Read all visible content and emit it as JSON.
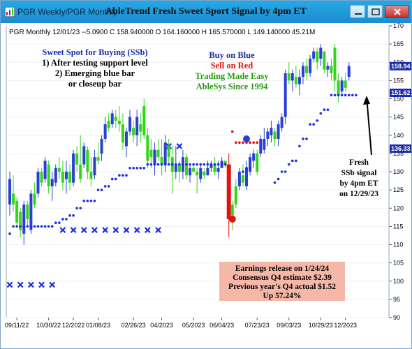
{
  "window": {
    "tab_title": "PGR  Weekly/PGR  Monthly",
    "title": "AbleTrend Fresh Sweet Sport Signal by 4pm ET",
    "buttons": [
      "minimize",
      "maximize",
      "close"
    ]
  },
  "header": {
    "ohlc": "PGR  Monthly 12/01/23 --5.0900  C 158.940000  O 164.160000  H 165.570000  L 149.140000  45.21M"
  },
  "annotations": {
    "sweet_spot": [
      "Sweet Spot for Buying (SSb)",
      "1) After testing support level",
      "2) Emerging blue bar",
      "or closeup bar"
    ],
    "center": [
      {
        "text": "Buy on Blue",
        "color": "#1a2da8"
      },
      {
        "text": "Sell on Red",
        "color": "#e51010"
      },
      {
        "text": "Trading Made Easy",
        "color": "#2a9a10"
      },
      {
        "text": "AbleSys Since 1994",
        "color": "#2a9a10"
      }
    ],
    "fresh": [
      "Fresh",
      "SSb signal",
      "by 4pm ET",
      "on 12/29/23"
    ],
    "earnings": [
      "Earnings release on 1/24/24",
      "Consensus Q4 estimate $2.39",
      "Previous year's Q4 actual $1.52",
      "Up 57.24%"
    ]
  },
  "price_badges": [
    {
      "label": "158.94",
      "value": 158.94,
      "color": "#1a2da8"
    },
    {
      "label": "151.62",
      "value": 151.62,
      "color": "#1a2da8"
    },
    {
      "label": "136.33",
      "value": 136.33,
      "color": "#1a2da8"
    }
  ],
  "colors": {
    "up": "#2b3fd6",
    "down": "#33d61a",
    "sell": "#e51010",
    "dot": "#1a2de0",
    "xmark": "#1a2de0",
    "earnings_bg": "#f5b7a8"
  },
  "chart_data": {
    "type": "candlestick",
    "ylim": [
      90,
      170
    ],
    "y_ticks": [
      90,
      95,
      100,
      105,
      110,
      115,
      120,
      125,
      130,
      135,
      140,
      145,
      150,
      155,
      160,
      165,
      170
    ],
    "x_ticks": [
      "09/11/22",
      "10/30/22",
      "12/2022",
      "01/08/23",
      "02/26/23",
      "04/2023",
      "05/2023",
      "06/04/23",
      "07/23/23",
      "09/03/23",
      "10/29/23",
      "12/2023"
    ],
    "x_tick_index": [
      2,
      11,
      18,
      25,
      35,
      43,
      52,
      60,
      70,
      79,
      88,
      95
    ],
    "bars": [
      [
        130,
        118,
        128,
        121,
        "up"
      ],
      [
        129,
        119,
        124,
        121,
        "down"
      ],
      [
        123,
        115,
        122,
        116,
        "down"
      ],
      [
        120,
        112,
        119,
        114,
        "down"
      ],
      [
        122,
        110,
        113,
        121,
        "up"
      ],
      [
        122,
        115,
        121,
        117,
        "down"
      ],
      [
        125,
        113,
        114,
        124,
        "up"
      ],
      [
        127,
        120,
        124,
        121,
        "down"
      ],
      [
        131,
        123,
        124,
        130,
        "up"
      ],
      [
        131,
        126,
        130,
        127,
        "down"
      ],
      [
        134,
        127,
        128,
        133,
        "up"
      ],
      [
        133,
        124,
        132,
        126,
        "down"
      ],
      [
        130,
        122,
        126,
        128,
        "up"
      ],
      [
        132,
        126,
        127,
        131,
        "up"
      ],
      [
        134,
        128,
        131,
        130,
        "down"
      ],
      [
        133,
        125,
        130,
        127,
        "down"
      ],
      [
        133,
        124,
        128,
        130,
        "up"
      ],
      [
        132,
        125,
        130,
        127,
        "down"
      ],
      [
        136,
        126,
        127,
        135,
        "up"
      ],
      [
        137,
        130,
        135,
        132,
        "down"
      ],
      [
        140,
        127,
        132,
        128,
        "down"
      ],
      [
        138,
        131,
        132,
        137,
        "up"
      ],
      [
        137,
        128,
        136,
        130,
        "down"
      ],
      [
        134,
        126,
        130,
        128,
        "down"
      ],
      [
        136,
        128,
        129,
        134,
        "up"
      ],
      [
        138,
        132,
        134,
        133,
        "down"
      ],
      [
        140,
        133,
        135,
        139,
        "up"
      ],
      [
        145,
        138,
        139,
        143,
        "up"
      ],
      [
        146,
        141,
        144,
        142,
        "down"
      ],
      [
        147,
        142,
        143,
        146,
        "up"
      ],
      [
        147,
        142,
        145,
        144,
        "down"
      ],
      [
        148,
        141,
        144,
        143,
        "down"
      ],
      [
        146,
        136,
        143,
        138,
        "down"
      ],
      [
        142,
        134,
        137,
        141,
        "up"
      ],
      [
        147,
        140,
        141,
        145,
        "up"
      ],
      [
        144,
        138,
        142,
        140,
        "down"
      ],
      [
        147,
        137,
        140,
        145,
        "up"
      ],
      [
        146,
        138,
        143,
        141,
        "down"
      ],
      [
        150,
        139,
        148,
        140,
        "down"
      ],
      [
        142,
        131,
        140,
        133,
        "down"
      ],
      [
        139,
        131,
        136,
        134,
        "down"
      ],
      [
        138,
        129,
        132,
        136,
        "up"
      ],
      [
        139,
        133,
        136,
        134,
        "down"
      ],
      [
        139,
        129,
        134,
        132,
        "down"
      ],
      [
        140,
        130,
        132,
        138,
        "up"
      ],
      [
        139,
        132,
        137,
        134,
        "down"
      ],
      [
        137,
        124,
        134,
        130,
        "down"
      ],
      [
        137,
        128,
        130,
        132,
        "up"
      ],
      [
        133,
        127,
        132,
        130,
        "down"
      ],
      [
        136,
        128,
        130,
        134,
        "up"
      ],
      [
        135,
        128,
        134,
        129,
        "down"
      ],
      [
        132,
        127,
        129,
        131,
        "up"
      ],
      [
        132,
        130,
        131,
        130,
        "down"
      ],
      [
        131,
        124,
        130,
        129,
        "down"
      ],
      [
        132,
        127,
        128,
        131,
        "up"
      ],
      [
        131,
        128,
        130,
        129,
        "down"
      ],
      [
        133,
        129,
        129,
        131,
        "up"
      ],
      [
        133,
        130,
        131,
        132,
        "up"
      ],
      [
        134,
        129,
        132,
        130,
        "down"
      ],
      [
        133,
        128,
        130,
        131,
        "up"
      ],
      [
        134,
        131,
        131,
        133,
        "up"
      ],
      [
        133,
        131,
        133,
        132,
        "down"
      ],
      [
        135,
        112,
        132,
        117,
        "sell"
      ],
      [
        122,
        114,
        118,
        121,
        "down"
      ],
      [
        128,
        120,
        121,
        126,
        "down"
      ],
      [
        131,
        125,
        126,
        130,
        "up"
      ],
      [
        132,
        126,
        129,
        127,
        "down"
      ],
      [
        133,
        125,
        126,
        131,
        "up"
      ],
      [
        135,
        129,
        130,
        134,
        "up"
      ],
      [
        136,
        131,
        133,
        135,
        "up"
      ],
      [
        136,
        129,
        135,
        130,
        "down"
      ],
      [
        140,
        134,
        135,
        139,
        "up"
      ],
      [
        142,
        135,
        136,
        139,
        "up"
      ],
      [
        142,
        137,
        139,
        141,
        "up"
      ],
      [
        144,
        138,
        140,
        142,
        "up"
      ],
      [
        142,
        137,
        141,
        139,
        "down"
      ],
      [
        144,
        137,
        139,
        143,
        "up"
      ],
      [
        146,
        141,
        142,
        145,
        "up"
      ],
      [
        158,
        143,
        145,
        157,
        "up"
      ],
      [
        160,
        154,
        157,
        155,
        "down"
      ],
      [
        158,
        152,
        155,
        157,
        "up"
      ],
      [
        159,
        153,
        156,
        154,
        "down"
      ],
      [
        158,
        151,
        154,
        156,
        "up"
      ],
      [
        160,
        154,
        156,
        159,
        "up"
      ],
      [
        161,
        155,
        159,
        157,
        "down"
      ],
      [
        162,
        156,
        157,
        161,
        "up"
      ],
      [
        164,
        160,
        161,
        163,
        "up"
      ],
      [
        164,
        158,
        163,
        160,
        "down"
      ],
      [
        165,
        159,
        161,
        164,
        "up"
      ],
      [
        163,
        157,
        163,
        158,
        "down"
      ],
      [
        160,
        156,
        158,
        159,
        "up"
      ],
      [
        161,
        155,
        159,
        157,
        "down"
      ],
      [
        165,
        152,
        164,
        155,
        "down"
      ],
      [
        157,
        149,
        155,
        151,
        "down"
      ],
      [
        156,
        151,
        152,
        155,
        "up"
      ],
      [
        157,
        152,
        155,
        153,
        "down"
      ],
      [
        160,
        155,
        156,
        159,
        "up"
      ]
    ],
    "support_dots": [
      [
        0,
        113
      ],
      [
        1,
        115
      ],
      [
        2,
        115
      ],
      [
        3,
        115
      ],
      [
        4,
        115
      ],
      [
        5,
        115
      ],
      [
        6,
        115
      ],
      [
        7,
        115
      ],
      [
        8,
        115
      ],
      [
        9,
        115
      ],
      [
        10,
        115
      ],
      [
        11,
        115
      ],
      [
        12,
        115
      ],
      [
        13,
        116
      ],
      [
        14,
        116
      ],
      [
        15,
        117
      ],
      [
        16,
        117
      ],
      [
        17,
        118
      ],
      [
        18,
        118
      ],
      [
        19,
        120
      ],
      [
        20,
        120
      ],
      [
        21,
        122
      ],
      [
        22,
        122
      ],
      [
        23,
        122
      ],
      [
        24,
        122
      ],
      [
        25,
        125
      ],
      [
        26,
        125
      ],
      [
        27,
        126
      ],
      [
        28,
        126
      ],
      [
        29,
        128
      ],
      [
        30,
        128
      ],
      [
        31,
        129
      ],
      [
        32,
        129
      ],
      [
        33,
        129
      ],
      [
        34,
        131
      ],
      [
        35,
        131
      ],
      [
        36,
        131
      ],
      [
        37,
        131
      ],
      [
        38,
        131
      ],
      [
        39,
        132
      ],
      [
        40,
        132
      ],
      [
        41,
        132
      ],
      [
        42,
        132
      ],
      [
        43,
        132
      ],
      [
        44,
        132
      ],
      [
        45,
        132
      ],
      [
        46,
        132
      ],
      [
        47,
        132
      ],
      [
        48,
        132
      ],
      [
        49,
        132
      ],
      [
        50,
        132
      ],
      [
        51,
        132
      ],
      [
        52,
        132
      ],
      [
        53,
        132
      ],
      [
        54,
        132
      ],
      [
        55,
        132
      ],
      [
        56,
        132
      ],
      [
        57,
        132
      ],
      [
        58,
        132
      ],
      [
        59,
        132
      ],
      [
        60,
        132
      ],
      [
        61,
        132
      ],
      [
        66,
        130
      ],
      [
        67,
        131
      ],
      [
        68,
        131
      ],
      [
        75,
        127
      ],
      [
        76,
        128
      ],
      [
        77,
        130
      ],
      [
        78,
        130
      ],
      [
        79,
        132
      ],
      [
        80,
        133
      ],
      [
        81,
        133
      ],
      [
        82,
        137
      ],
      [
        83,
        139
      ],
      [
        84,
        139
      ],
      [
        85,
        143
      ],
      [
        86,
        143
      ],
      [
        87,
        144
      ],
      [
        88,
        146
      ],
      [
        89,
        147
      ],
      [
        90,
        147
      ],
      [
        91,
        151
      ],
      [
        92,
        151
      ],
      [
        93,
        151
      ],
      [
        94,
        151
      ],
      [
        95,
        151
      ],
      [
        96,
        151
      ],
      [
        97,
        151
      ],
      [
        98,
        151
      ]
    ],
    "resistance_dots": [
      [
        63,
        141
      ],
      [
        64,
        138
      ],
      [
        65,
        138
      ],
      [
        66,
        138
      ],
      [
        67,
        138
      ],
      [
        68,
        138
      ],
      [
        69,
        138
      ],
      [
        70,
        138
      ]
    ],
    "crosses": [
      [
        0,
        99
      ],
      [
        3,
        99
      ],
      [
        6,
        99
      ],
      [
        9,
        99
      ],
      [
        12,
        99
      ],
      [
        15,
        114
      ],
      [
        18,
        114
      ],
      [
        21,
        114
      ],
      [
        24,
        114
      ],
      [
        27,
        114
      ],
      [
        30,
        114
      ],
      [
        33,
        114
      ],
      [
        36,
        114
      ],
      [
        39,
        114
      ],
      [
        42,
        114
      ],
      [
        45,
        137
      ],
      [
        48,
        137
      ]
    ],
    "markers": [
      [
        63,
        117,
        "red"
      ],
      [
        67,
        139,
        "blue"
      ]
    ]
  }
}
